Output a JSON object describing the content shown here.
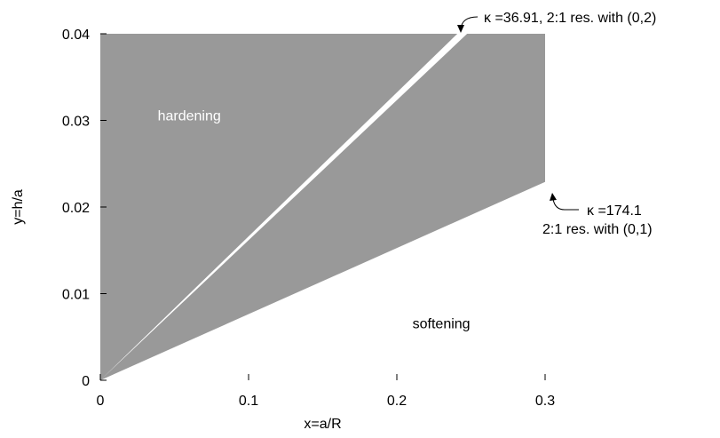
{
  "chart_data": {
    "type": "area",
    "title": "",
    "xlabel": "x=a/R",
    "ylabel": "y=h/a",
    "xlim": [
      0,
      0.3
    ],
    "ylim": [
      0,
      0.04
    ],
    "xticks": [
      0,
      0.1,
      0.2,
      0.3
    ],
    "xtick_labels": [
      "0",
      "0.1",
      "0.2",
      "0.3"
    ],
    "yticks": [
      0,
      0.01,
      0.02,
      0.03,
      0.04
    ],
    "ytick_labels": [
      "0",
      "0.01",
      "0.02",
      "0.03",
      "0.04"
    ],
    "grid": false,
    "colors": {
      "region_fill": "#999999",
      "background": "#ffffff"
    },
    "boundaries": [
      {
        "points": [
          [
            0,
            0
          ],
          [
            0.3,
            0.0229
          ]
        ],
        "annotation": [
          "κ =174.1",
          "2:1 res. with (0,1)"
        ]
      },
      {
        "points": [
          [
            0,
            0
          ],
          [
            0.245,
            0.04
          ]
        ],
        "annotation": [
          "κ =36.91, 2:1 res. with (0,2)"
        ]
      }
    ],
    "region_labels": [
      {
        "text": "hardening",
        "x": 0.06,
        "y": 0.03
      },
      {
        "text": "softening",
        "x": 0.23,
        "y": 0.006
      }
    ]
  }
}
